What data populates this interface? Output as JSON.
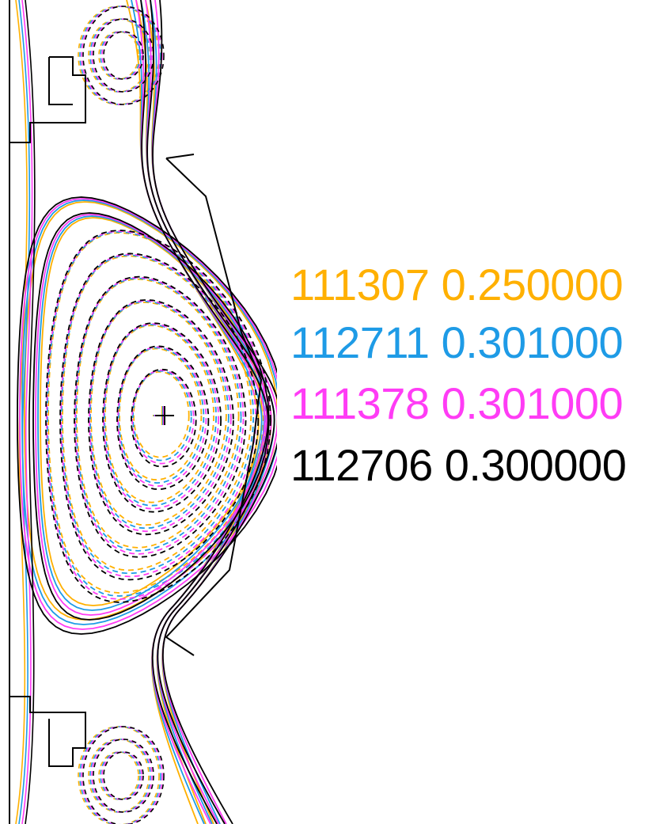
{
  "legend": [
    {
      "shot": "111307",
      "time": "0.250000",
      "color": "#ffb000"
    },
    {
      "shot": "112711",
      "time": "0.301000",
      "color": "#1e9be6"
    },
    {
      "shot": "111378",
      "time": "0.301000",
      "color": "#ff3cf5"
    },
    {
      "shot": "112706",
      "time": "0.300000",
      "color": "#000000"
    }
  ],
  "colors": {
    "vessel_wall": "#000000",
    "background": "#ffffff"
  },
  "features": {
    "magnetic_axis_marker": "plus",
    "flux_contours_inside": "dashed",
    "flux_contours_outside": "solid"
  }
}
